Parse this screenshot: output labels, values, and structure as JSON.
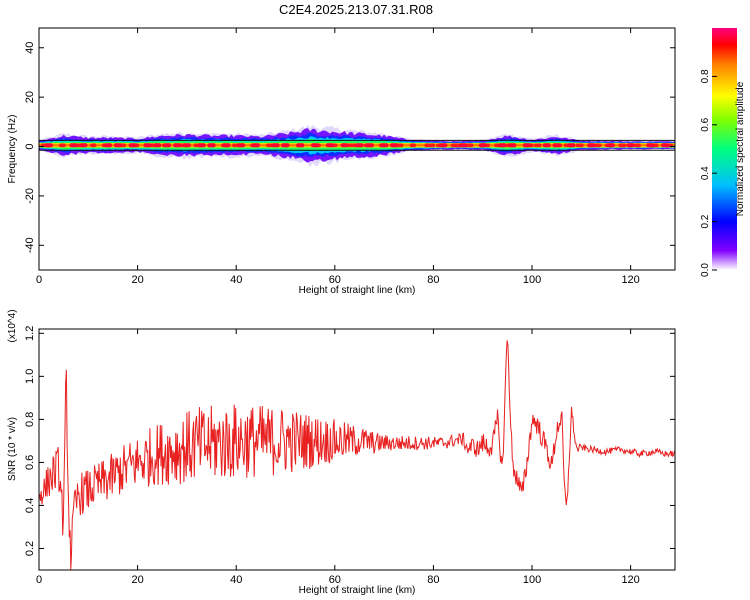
{
  "title": "C2E4.2025.213.07.31.R08",
  "chart_data": [
    {
      "type": "heatmap",
      "xlabel": "Height of straight line (km)",
      "ylabel": "Frequency (Hz)",
      "xlim": [
        0,
        129
      ],
      "ylim": [
        -50,
        48
      ],
      "x_ticks": [
        "0",
        "20",
        "40",
        "60",
        "80",
        "100",
        "120"
      ],
      "y_ticks": [
        "40",
        "20",
        "0",
        "-20",
        "-40"
      ],
      "colorbar": {
        "label": "Normalized spectral amplitude",
        "ticks": [
          "0.0",
          "0.2",
          "0.4",
          "0.6",
          "0.8"
        ],
        "range": [
          0,
          1
        ],
        "placement": "right"
      },
      "center_frequency_hz": 0.5,
      "band_bounds_hz": [
        -1.5,
        2.5
      ],
      "bright_spots_km": [
        2,
        7,
        9,
        14,
        16,
        19,
        22,
        24,
        26,
        28,
        30,
        33,
        35,
        38,
        41,
        44,
        48,
        50,
        53,
        56,
        59,
        62,
        65,
        67,
        70,
        72,
        82,
        86,
        90,
        94,
        96,
        99,
        103,
        105,
        108,
        112,
        116,
        120,
        124,
        127
      ],
      "spread_hz_by_km": [
        [
          0,
          1.5
        ],
        [
          5,
          4
        ],
        [
          10,
          3
        ],
        [
          15,
          3
        ],
        [
          20,
          2.5
        ],
        [
          25,
          4
        ],
        [
          30,
          4.5
        ],
        [
          35,
          4
        ],
        [
          40,
          4
        ],
        [
          45,
          3.5
        ],
        [
          50,
          5
        ],
        [
          55,
          7
        ],
        [
          60,
          6
        ],
        [
          65,
          5
        ],
        [
          70,
          4
        ],
        [
          75,
          2
        ],
        [
          80,
          1.5
        ],
        [
          85,
          1.2
        ],
        [
          90,
          1.5
        ],
        [
          95,
          4
        ],
        [
          100,
          2
        ],
        [
          105,
          3.5
        ],
        [
          110,
          1.5
        ],
        [
          120,
          1.2
        ],
        [
          129,
          1.2
        ]
      ],
      "grid": false
    },
    {
      "type": "line",
      "xlabel": "Height of straight line (km)",
      "ylabel": "SNR (10 * v/v)",
      "y_multiplier": "(x10^4)",
      "xlim": [
        0,
        129
      ],
      "ylim": [
        0.1,
        1.22
      ],
      "x_ticks": [
        "0",
        "20",
        "40",
        "60",
        "80",
        "100",
        "120"
      ],
      "y_ticks": [
        "1.2",
        "1.0",
        "0.8",
        "0.6",
        "0.4",
        "0.2"
      ],
      "series": [
        {
          "color": "#e82020",
          "x": [
            0,
            1,
            2,
            3,
            4,
            5,
            5.5,
            6,
            6.5,
            7,
            8,
            10,
            12,
            14,
            16,
            18,
            20,
            22,
            24,
            26,
            28,
            30,
            32,
            34,
            36,
            38,
            40,
            42,
            44,
            46,
            48,
            50,
            52,
            54,
            56,
            58,
            60,
            62,
            64,
            66,
            68,
            70,
            72,
            74,
            76,
            78,
            80,
            82,
            84,
            86,
            87,
            88,
            89,
            90,
            91,
            92,
            93,
            94,
            94.5,
            95,
            95.5,
            96,
            97,
            98,
            99,
            100,
            101,
            102,
            103,
            104,
            105,
            106,
            106.5,
            107,
            107.5,
            108,
            109,
            110,
            112,
            115,
            118,
            120,
            122,
            125,
            127,
            129
          ],
          "y": [
            0.45,
            0.47,
            0.52,
            0.55,
            0.58,
            0.3,
            1.02,
            0.4,
            0.15,
            0.35,
            0.45,
            0.47,
            0.5,
            0.52,
            0.55,
            0.58,
            0.6,
            0.62,
            0.64,
            0.65,
            0.66,
            0.67,
            0.68,
            0.68,
            0.69,
            0.69,
            0.7,
            0.7,
            0.7,
            0.7,
            0.7,
            0.7,
            0.7,
            0.7,
            0.7,
            0.7,
            0.7,
            0.7,
            0.7,
            0.7,
            0.69,
            0.69,
            0.69,
            0.69,
            0.69,
            0.69,
            0.69,
            0.69,
            0.7,
            0.71,
            0.66,
            0.68,
            0.66,
            0.69,
            0.67,
            0.68,
            0.8,
            0.55,
            0.9,
            1.2,
            0.9,
            0.6,
            0.52,
            0.45,
            0.6,
            0.8,
            0.78,
            0.72,
            0.66,
            0.58,
            0.75,
            0.82,
            0.52,
            0.36,
            0.6,
            0.84,
            0.66,
            0.67,
            0.66,
            0.65,
            0.66,
            0.65,
            0.64,
            0.65,
            0.64,
            0.64
          ],
          "noise_amplitude_by_km": [
            [
              0,
              0.05
            ],
            [
              3,
              0.1
            ],
            [
              8,
              0.1
            ],
            [
              12,
              0.1
            ],
            [
              18,
              0.12
            ],
            [
              25,
              0.15
            ],
            [
              32,
              0.18
            ],
            [
              40,
              0.18
            ],
            [
              50,
              0.16
            ],
            [
              60,
              0.1
            ],
            [
              70,
              0.04
            ],
            [
              80,
              0.03
            ],
            [
              86,
              0.03
            ],
            [
              90,
              0.05
            ],
            [
              100,
              0.05
            ],
            [
              106,
              0.05
            ],
            [
              110,
              0.015
            ],
            [
              129,
              0.015
            ]
          ]
        }
      ],
      "grid": false
    }
  ]
}
